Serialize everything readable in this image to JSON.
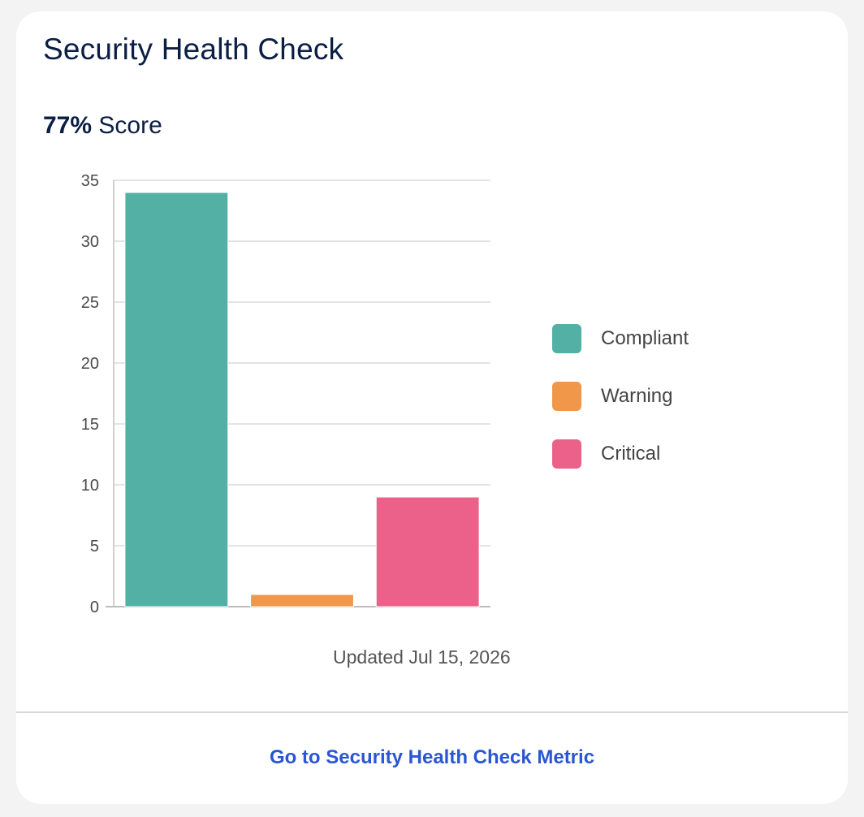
{
  "card": {
    "title": "Security Health Check",
    "score_value": "77%",
    "score_label": "Score",
    "updated": "Updated Jul 15, 2026",
    "link_label": "Go to Security Health Check Metric"
  },
  "colors": {
    "title": "#0b1f45",
    "link": "#2a55d4",
    "compliant": "#52b0a5",
    "warning": "#f0974a",
    "critical": "#ec618a"
  },
  "chart_data": {
    "type": "bar",
    "categories": [
      "Compliant",
      "Warning",
      "Critical"
    ],
    "values": [
      34,
      1,
      9
    ],
    "colors": [
      "#52b0a5",
      "#f0974a",
      "#ec618a"
    ],
    "ylim": [
      0,
      35
    ],
    "yticks": [
      0,
      5,
      10,
      15,
      20,
      25,
      30,
      35
    ],
    "xlabel": "",
    "ylabel": "",
    "grid": true,
    "legend_position": "right"
  },
  "legend": [
    {
      "label": "Compliant",
      "color": "#52b0a5"
    },
    {
      "label": "Warning",
      "color": "#f0974a"
    },
    {
      "label": "Critical",
      "color": "#ec618a"
    }
  ]
}
